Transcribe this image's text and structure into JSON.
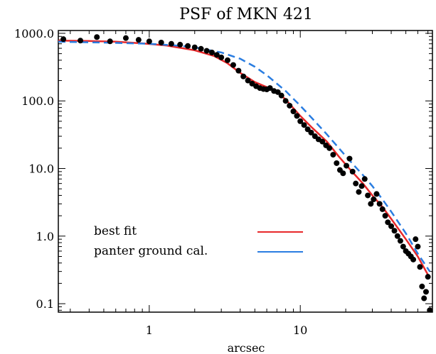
{
  "chart_data": {
    "type": "line",
    "title": "PSF of MKN 421",
    "xlabel": "arcsec",
    "ylabel": "",
    "x_scale": "log",
    "y_scale": "log",
    "xlim": [
      0.25,
      75
    ],
    "ylim": [
      0.075,
      1100
    ],
    "x_ticks": [
      1,
      10
    ],
    "x_tick_labels": [
      "1",
      "10"
    ],
    "y_ticks": [
      0.1,
      1,
      10,
      100,
      1000
    ],
    "y_tick_labels": [
      "0.1",
      "1.0",
      "10.0",
      "100.0",
      "1000.0"
    ],
    "grid": false,
    "legend_position": "bottom-left",
    "legend": [
      {
        "label": "best fit",
        "color": "#e8282a"
      },
      {
        "label": "panter ground cal.",
        "color": "#2a7de1"
      }
    ],
    "series": [
      {
        "name": "best fit",
        "style": "solid",
        "color": "#e8282a",
        "x": [
          0.25,
          0.4,
          0.6,
          0.9,
          1.3,
          2.0,
          2.7,
          3.3,
          4.0,
          5.0,
          6.0,
          7.0,
          8.0,
          10.0,
          12.0,
          15.0,
          18.0,
          22.0,
          26.0,
          30.0,
          35.0,
          40.0,
          50.0,
          60.0,
          72.0
        ],
        "y": [
          780,
          770,
          750,
          710,
          660,
          560,
          460,
          360,
          260,
          190,
          160,
          135,
          105,
          60,
          40,
          25,
          15,
          9,
          6,
          4,
          2.7,
          1.8,
          0.9,
          0.5,
          0.24
        ]
      },
      {
        "name": "panter ground cal.",
        "style": "dashed",
        "color": "#2a7de1",
        "x": [
          0.25,
          0.5,
          1.0,
          1.5,
          2.0,
          3.0,
          4.0,
          5.0,
          6.0,
          7.0,
          8.0,
          10.0,
          12.0,
          15.0,
          18.0,
          22.0,
          26.0,
          30.0,
          35.0,
          40.0,
          50.0,
          60.0,
          72.0
        ],
        "y": [
          750,
          730,
          700,
          660,
          620,
          520,
          420,
          320,
          240,
          180,
          140,
          85,
          55,
          32,
          20,
          12,
          8,
          5.5,
          3.5,
          2.3,
          1.1,
          0.55,
          0.3
        ]
      },
      {
        "name": "data",
        "style": "points",
        "color": "#000000",
        "x": [
          0.27,
          0.35,
          0.45,
          0.55,
          0.7,
          0.85,
          1.0,
          1.2,
          1.4,
          1.6,
          1.8,
          2.0,
          2.2,
          2.4,
          2.6,
          2.8,
          3.0,
          3.3,
          3.6,
          3.9,
          4.2,
          4.5,
          4.8,
          5.1,
          5.4,
          5.7,
          6.0,
          6.3,
          6.7,
          7.1,
          7.5,
          8.0,
          8.5,
          9.0,
          9.5,
          10.0,
          10.6,
          11.2,
          11.8,
          12.5,
          13.2,
          14.0,
          14.8,
          15.6,
          16.5,
          17.4,
          18.3,
          19.2,
          20.2,
          21.2,
          22.2,
          23.3,
          24.4,
          25.5,
          26.7,
          28.0,
          29.3,
          30.6,
          32.0,
          33.5,
          35.0,
          36.5,
          38.0,
          40.0,
          42.0,
          44.0,
          46.0,
          48.0,
          50.0,
          52.0,
          54.0,
          56.0,
          58.0,
          60.0,
          62.0,
          64.0,
          66.0,
          68.0,
          70.0,
          72.0
        ],
        "y": [
          820,
          780,
          880,
          760,
          850,
          800,
          760,
          730,
          700,
          680,
          650,
          620,
          590,
          550,
          520,
          480,
          440,
          400,
          340,
          280,
          230,
          200,
          180,
          165,
          155,
          150,
          148,
          155,
          140,
          135,
          120,
          100,
          85,
          70,
          60,
          50,
          44,
          38,
          34,
          30,
          27,
          25,
          22,
          20,
          16,
          12,
          9.5,
          8.5,
          11,
          14,
          9,
          6,
          4.5,
          5.5,
          7,
          4,
          3,
          3.5,
          4.2,
          3.0,
          2.5,
          2.0,
          1.6,
          1.4,
          1.2,
          1.0,
          0.85,
          0.7,
          0.6,
          0.55,
          0.5,
          0.45,
          0.9,
          0.7,
          0.35,
          0.18,
          0.12,
          0.15,
          0.25,
          0.08
        ]
      }
    ]
  }
}
